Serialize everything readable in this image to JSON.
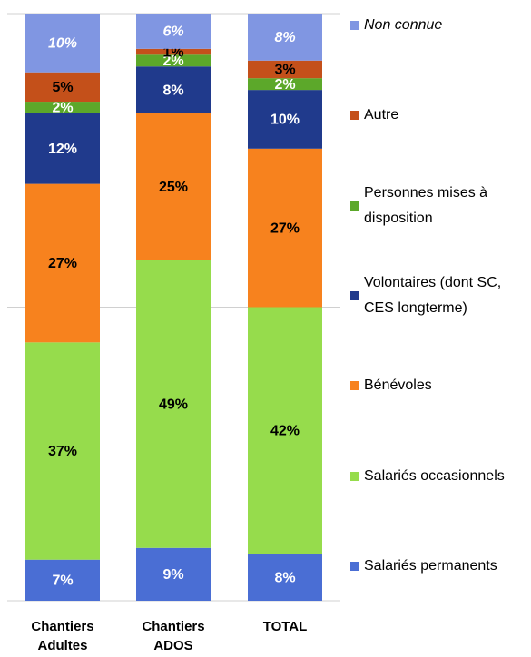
{
  "chart_data": {
    "type": "stacked_bar_100",
    "categories": [
      "Chantiers Adultes",
      "Chantiers ADOS",
      "TOTAL"
    ],
    "ylim": [
      0,
      100
    ],
    "yticks": [
      0,
      50,
      100
    ],
    "grid": true,
    "legend": "right",
    "series": [
      {
        "name": "Salariés permanents",
        "color": "#4a6ed4",
        "label_color": "#ffffff",
        "values": [
          7,
          9,
          8
        ],
        "value_labels": [
          "7%",
          "9%",
          "8%"
        ]
      },
      {
        "name": "Salariés occasionnels",
        "color": "#96dc4c",
        "label_color": "#000000",
        "values": [
          37,
          49,
          42
        ],
        "value_labels": [
          "37%",
          "49%",
          "42%"
        ]
      },
      {
        "name": "Bénévoles",
        "color": "#f7821e",
        "label_color": "#000000",
        "values": [
          27,
          25,
          27
        ],
        "value_labels": [
          "27%",
          "25%",
          "27%"
        ]
      },
      {
        "name": "Volontaires (dont SC, CES longterme)",
        "color": "#203a8c",
        "label_color": "#ffffff",
        "values": [
          12,
          8,
          10
        ],
        "value_labels": [
          "12%",
          "8%",
          "10%"
        ]
      },
      {
        "name": "Personnes mises à disposition",
        "color": "#5ca82a",
        "label_color": "#ffffff",
        "values": [
          2,
          2,
          2
        ],
        "value_labels": [
          "2%",
          "2%",
          "2%"
        ]
      },
      {
        "name": "Autre",
        "color": "#c4501a",
        "label_color": "#000000",
        "values": [
          5,
          1,
          3
        ],
        "value_labels": [
          "5%",
          "1%",
          "3%"
        ]
      },
      {
        "name": "Non connue",
        "color": "#8096e2",
        "label_color": "#ffffff",
        "italic": true,
        "values": [
          10,
          6,
          8
        ],
        "value_labels": [
          "10%",
          "6%",
          "8%"
        ]
      }
    ]
  }
}
